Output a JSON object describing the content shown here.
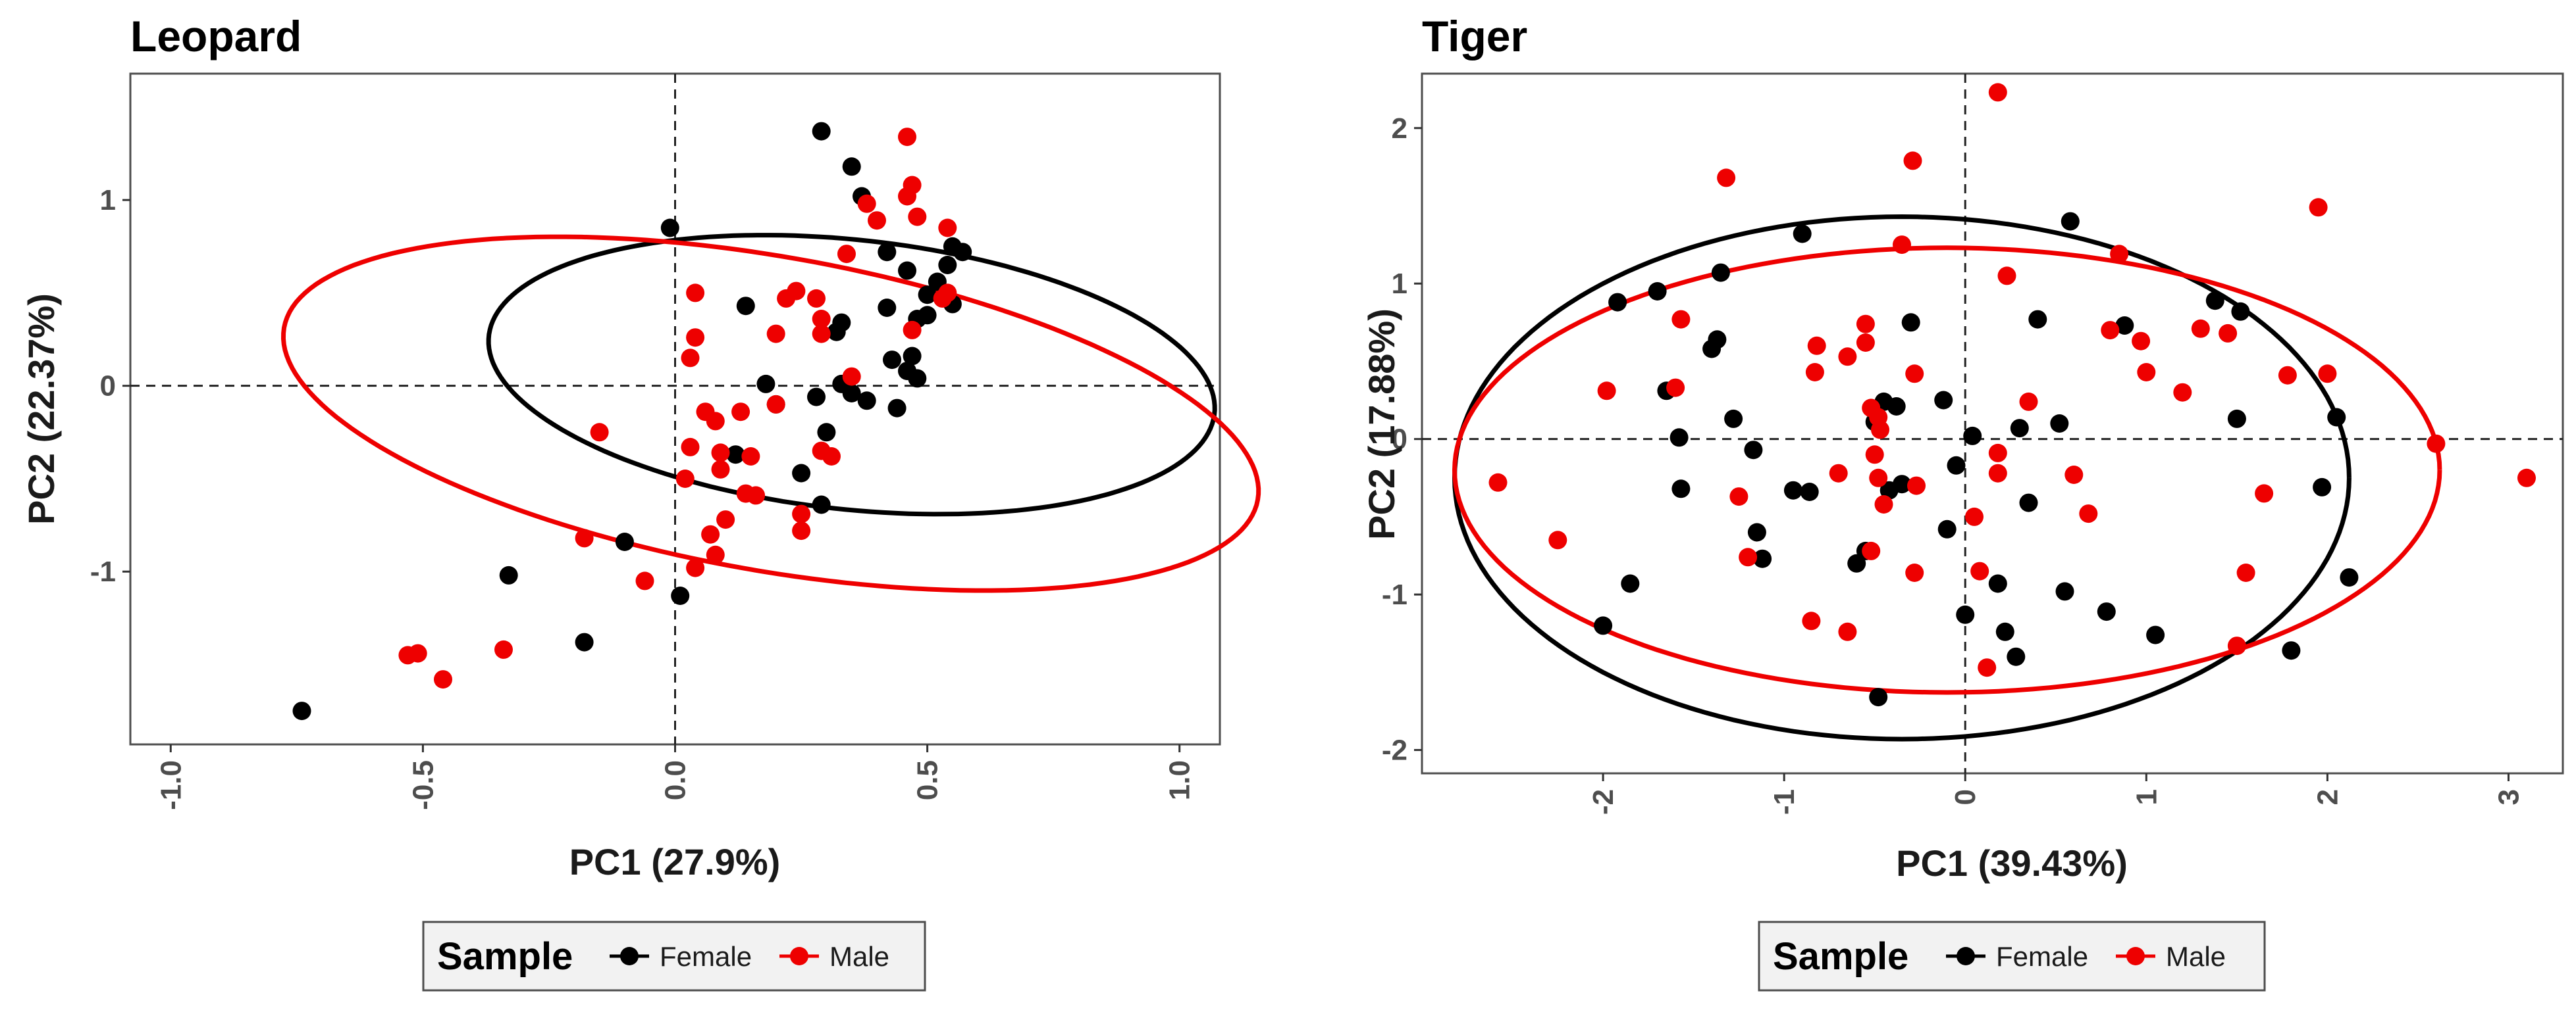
{
  "chart_data": [
    {
      "type": "scatter",
      "title": "Leopard",
      "xlabel": "PC1 (27.9%)",
      "ylabel": "PC2 (22.37%)",
      "xlim": [
        -1.08,
        1.08
      ],
      "ylim": [
        -1.93,
        1.68
      ],
      "xticks": [
        -1.0,
        -0.5,
        0.0,
        0.5,
        1.0
      ],
      "xtick_labels": [
        "-1.0",
        "-0.5",
        "0.0",
        "0.5",
        "1.0"
      ],
      "yticks": [
        1,
        0,
        -1
      ],
      "ytick_labels": [
        "1",
        "0",
        "-1"
      ],
      "reference_lines": {
        "x": 0,
        "y": 0
      },
      "grid": false,
      "legend": {
        "title": "Sample",
        "position": "bottom",
        "entries": [
          "Female",
          "Male"
        ]
      },
      "colors": {
        "Female": "#000000",
        "Male": "#ee0000"
      },
      "ellipses": [
        {
          "series": "Female",
          "center": [
            0.35,
            0.06
          ],
          "rx": 0.64,
          "ry": 0.82,
          "angle": 40
        },
        {
          "series": "Male",
          "center": [
            0.19,
            -0.15
          ],
          "rx": 0.72,
          "ry": 1.15,
          "angle": 46
        }
      ],
      "series": [
        {
          "name": "Female",
          "points": [
            [
              -0.74,
              -1.75
            ],
            [
              -0.33,
              -1.02
            ],
            [
              -0.18,
              -1.38
            ],
            [
              -0.1,
              -0.84
            ],
            [
              0.01,
              -1.13
            ],
            [
              -0.01,
              0.85
            ],
            [
              0.29,
              1.37
            ],
            [
              0.35,
              1.18
            ],
            [
              0.37,
              1.02
            ],
            [
              0.14,
              0.43
            ],
            [
              0.18,
              0.01
            ],
            [
              0.2,
              -0.1
            ],
            [
              0.12,
              -0.37
            ],
            [
              0.25,
              -0.47
            ],
            [
              0.29,
              -0.64
            ],
            [
              0.3,
              -0.25
            ],
            [
              0.28,
              -0.06
            ],
            [
              0.33,
              0.01
            ],
            [
              0.35,
              -0.04
            ],
            [
              0.38,
              -0.08
            ],
            [
              0.44,
              -0.12
            ],
            [
              0.42,
              0.42
            ],
            [
              0.42,
              0.72
            ],
            [
              0.46,
              0.62
            ],
            [
              0.48,
              0.36
            ],
            [
              0.5,
              0.38
            ],
            [
              0.52,
              0.56
            ],
            [
              0.54,
              0.65
            ],
            [
              0.55,
              0.75
            ],
            [
              0.57,
              0.72
            ],
            [
              0.55,
              0.44
            ],
            [
              0.47,
              0.16
            ],
            [
              0.48,
              0.04
            ],
            [
              0.43,
              0.14
            ],
            [
              0.33,
              0.34
            ],
            [
              0.32,
              0.29
            ],
            [
              0.5,
              0.49
            ],
            [
              0.46,
              0.08
            ]
          ]
        },
        {
          "name": "Male",
          "points": [
            [
              -0.53,
              -1.45
            ],
            [
              -0.51,
              -1.44
            ],
            [
              -0.46,
              -1.58
            ],
            [
              -0.34,
              -1.42
            ],
            [
              -0.18,
              -0.82
            ],
            [
              -0.06,
              -1.05
            ],
            [
              -0.15,
              -0.25
            ],
            [
              0.04,
              0.5
            ],
            [
              0.04,
              0.26
            ],
            [
              0.03,
              0.15
            ],
            [
              0.06,
              -0.14
            ],
            [
              0.03,
              -0.33
            ],
            [
              0.02,
              -0.5
            ],
            [
              0.09,
              -0.45
            ],
            [
              0.09,
              -0.36
            ],
            [
              0.07,
              -0.8
            ],
            [
              0.08,
              -0.91
            ],
            [
              0.04,
              -0.98
            ],
            [
              0.1,
              -0.72
            ],
            [
              0.08,
              -0.19
            ],
            [
              0.13,
              -0.14
            ],
            [
              0.15,
              -0.38
            ],
            [
              0.16,
              -0.59
            ],
            [
              0.14,
              -0.58
            ],
            [
              0.2,
              -0.1
            ],
            [
              0.2,
              0.28
            ],
            [
              0.24,
              0.51
            ],
            [
              0.28,
              0.47
            ],
            [
              0.22,
              0.47
            ],
            [
              0.29,
              0.36
            ],
            [
              0.29,
              0.28
            ],
            [
              0.25,
              -0.69
            ],
            [
              0.25,
              -0.78
            ],
            [
              0.31,
              -0.38
            ],
            [
              0.29,
              -0.35
            ],
            [
              0.34,
              0.71
            ],
            [
              0.35,
              0.05
            ],
            [
              0.38,
              0.98
            ],
            [
              0.4,
              0.89
            ],
            [
              0.47,
              1.08
            ],
            [
              0.46,
              1.02
            ],
            [
              0.48,
              0.91
            ],
            [
              0.46,
              1.34
            ],
            [
              0.47,
              0.3
            ],
            [
              0.54,
              0.85
            ],
            [
              0.54,
              0.5
            ],
            [
              0.53,
              0.47
            ]
          ]
        }
      ]
    },
    {
      "type": "scatter",
      "title": "Tiger",
      "xlabel": "PC1 (39.43%)",
      "ylabel": "PC2 (17.88%)",
      "xlim": [
        -3.0,
        3.3
      ],
      "ylim": [
        -2.15,
        2.35
      ],
      "xticks": [
        -2,
        -1,
        0,
        1,
        2,
        3
      ],
      "xtick_labels": [
        "-2",
        "-1",
        "0",
        "1",
        "2",
        "3"
      ],
      "yticks": [
        2,
        1,
        0,
        -1,
        -2
      ],
      "ytick_labels": [
        "2",
        "1",
        "0",
        "-1",
        "-2"
      ],
      "reference_lines": {
        "x": 0,
        "y": 0
      },
      "grid": false,
      "legend": {
        "title": "Sample",
        "position": "bottom",
        "entries": [
          "Female",
          "Male"
        ]
      },
      "colors": {
        "Female": "#000000",
        "Male": "#ee0000"
      },
      "ellipses": [
        {
          "series": "Female",
          "center": [
            -0.35,
            -0.25
          ],
          "rx": 2.47,
          "ry": 1.68,
          "angle": 0
        },
        {
          "series": "Male",
          "center": [
            -0.1,
            -0.2
          ],
          "rx": 2.72,
          "ry": 1.43,
          "angle": 0
        }
      ],
      "series": [
        {
          "name": "Female",
          "points": [
            [
              -1.92,
              0.88
            ],
            [
              -1.7,
              0.95
            ],
            [
              -1.35,
              1.07
            ],
            [
              -0.9,
              1.32
            ],
            [
              -1.85,
              -0.93
            ],
            [
              -2.0,
              -1.2
            ],
            [
              -1.65,
              0.31
            ],
            [
              -1.58,
              0.01
            ],
            [
              -1.57,
              -0.32
            ],
            [
              -1.4,
              0.58
            ],
            [
              -1.37,
              0.64
            ],
            [
              -1.28,
              0.13
            ],
            [
              -1.17,
              -0.07
            ],
            [
              -1.15,
              -0.6
            ],
            [
              -1.12,
              -0.77
            ],
            [
              -0.95,
              -0.33
            ],
            [
              -0.86,
              -0.34
            ],
            [
              -0.45,
              0.24
            ],
            [
              -0.5,
              0.11
            ],
            [
              -0.38,
              0.21
            ],
            [
              -0.3,
              0.75
            ],
            [
              -0.12,
              0.25
            ],
            [
              -0.05,
              -0.17
            ],
            [
              0.04,
              0.02
            ],
            [
              -0.1,
              -0.58
            ],
            [
              -0.6,
              -0.8
            ],
            [
              -0.55,
              -0.72
            ],
            [
              -0.48,
              -1.66
            ],
            [
              -0.42,
              -0.33
            ],
            [
              -0.35,
              -0.29
            ],
            [
              0.0,
              -1.13
            ],
            [
              0.18,
              -0.93
            ],
            [
              0.22,
              -1.24
            ],
            [
              0.28,
              -1.4
            ],
            [
              0.3,
              0.07
            ],
            [
              0.35,
              -0.41
            ],
            [
              0.4,
              0.77
            ],
            [
              0.55,
              -0.98
            ],
            [
              0.58,
              1.4
            ],
            [
              0.88,
              0.73
            ],
            [
              1.05,
              -1.26
            ],
            [
              1.38,
              0.89
            ],
            [
              1.52,
              0.82
            ],
            [
              1.5,
              0.13
            ],
            [
              1.8,
              -1.36
            ],
            [
              1.97,
              -0.31
            ],
            [
              2.05,
              0.14
            ],
            [
              2.12,
              -0.89
            ],
            [
              0.78,
              -1.11
            ],
            [
              0.52,
              0.1
            ]
          ]
        },
        {
          "name": "Male",
          "points": [
            [
              -2.58,
              -0.28
            ],
            [
              -2.25,
              -0.65
            ],
            [
              -1.98,
              0.31
            ],
            [
              -1.6,
              0.33
            ],
            [
              -1.57,
              0.77
            ],
            [
              -1.32,
              1.68
            ],
            [
              -1.25,
              -0.37
            ],
            [
              -1.2,
              -0.76
            ],
            [
              -0.65,
              0.53
            ],
            [
              -0.55,
              0.74
            ],
            [
              -0.55,
              0.62
            ],
            [
              -0.82,
              0.6
            ],
            [
              -0.83,
              0.43
            ],
            [
              -0.85,
              -1.17
            ],
            [
              -0.65,
              -1.24
            ],
            [
              -0.7,
              -0.22
            ],
            [
              -0.52,
              0.2
            ],
            [
              -0.48,
              0.14
            ],
            [
              -0.47,
              0.06
            ],
            [
              -0.5,
              -0.1
            ],
            [
              -0.48,
              -0.25
            ],
            [
              -0.45,
              -0.42
            ],
            [
              -0.52,
              -0.72
            ],
            [
              -0.28,
              0.42
            ],
            [
              -0.27,
              -0.3
            ],
            [
              -0.28,
              -0.86
            ],
            [
              -0.29,
              1.79
            ],
            [
              -0.35,
              1.25
            ],
            [
              0.18,
              2.23
            ],
            [
              0.18,
              -0.09
            ],
            [
              0.18,
              -0.22
            ],
            [
              0.23,
              1.05
            ],
            [
              0.05,
              -0.5
            ],
            [
              0.08,
              -0.85
            ],
            [
              0.12,
              -1.47
            ],
            [
              0.35,
              0.24
            ],
            [
              0.6,
              -0.23
            ],
            [
              0.68,
              -0.48
            ],
            [
              0.8,
              0.7
            ],
            [
              0.85,
              1.19
            ],
            [
              0.97,
              0.63
            ],
            [
              1.0,
              0.43
            ],
            [
              1.2,
              0.3
            ],
            [
              1.3,
              0.71
            ],
            [
              1.45,
              0.68
            ],
            [
              1.5,
              -1.33
            ],
            [
              1.55,
              -0.86
            ],
            [
              1.65,
              -0.35
            ],
            [
              1.78,
              0.41
            ],
            [
              1.95,
              1.49
            ],
            [
              2.0,
              0.42
            ],
            [
              2.6,
              -0.03
            ],
            [
              3.1,
              -0.25
            ]
          ]
        }
      ]
    }
  ]
}
